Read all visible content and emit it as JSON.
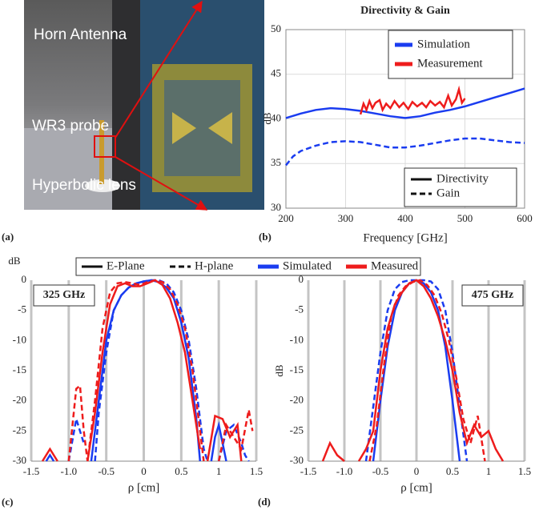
{
  "photo": {
    "labels": [
      "Horn Antenna",
      "WR3 probe",
      "Hyperbolic lens"
    ],
    "panel_label": "(a)"
  },
  "shared_legend": {
    "styles": [
      "E-Plane",
      "H-plane"
    ]
  },
  "chart_data": [
    {
      "type": "line",
      "title": "Directivity & Gain",
      "panel_label": "(b)",
      "x_label": "Frequency [GHz]",
      "y_label": "dB",
      "xlim": [
        200,
        600
      ],
      "xticks": [
        200,
        300,
        400,
        500,
        600
      ],
      "ylim": [
        30,
        50
      ],
      "yticks": [
        30,
        35,
        40,
        45,
        50
      ],
      "grid": true,
      "style_legend": [
        "Directivity",
        "Gain"
      ],
      "series": [
        {
          "name": "Simulation",
          "color": "#1a3cf0",
          "dashed": false,
          "x": [
            200,
            225,
            250,
            275,
            300,
            325,
            350,
            375,
            400,
            425,
            450,
            475,
            500,
            525,
            550,
            575,
            600
          ],
          "values": [
            40.1,
            40.6,
            41.0,
            41.2,
            41.1,
            40.9,
            40.6,
            40.3,
            40.1,
            40.3,
            40.7,
            41.0,
            41.4,
            41.9,
            42.4,
            42.9,
            43.4
          ]
        },
        {
          "name": "Simulation",
          "color": "#1a3cf0",
          "dashed": true,
          "x": [
            200,
            212,
            225,
            250,
            275,
            300,
            325,
            350,
            375,
            400,
            425,
            450,
            475,
            500,
            525,
            550,
            575,
            600
          ],
          "values": [
            34.8,
            35.8,
            36.4,
            37.0,
            37.4,
            37.5,
            37.4,
            37.1,
            36.8,
            36.8,
            37.0,
            37.3,
            37.6,
            37.8,
            37.8,
            37.6,
            37.4,
            37.3
          ]
        },
        {
          "name": "Measurement",
          "color": "#ee1c1c",
          "dashed": false,
          "x": [
            325,
            330,
            335,
            340,
            345,
            350,
            357,
            362,
            368,
            375,
            382,
            390,
            397,
            405,
            412,
            420,
            428,
            435,
            442,
            450,
            458,
            465,
            472,
            478,
            485,
            490,
            495,
            500
          ],
          "values": [
            40.5,
            41.7,
            41.0,
            42.0,
            41.2,
            41.8,
            42.1,
            41.0,
            41.7,
            41.2,
            42.0,
            41.3,
            41.8,
            41.1,
            41.9,
            41.4,
            41.8,
            41.3,
            42.0,
            41.5,
            41.9,
            41.3,
            42.6,
            41.5,
            42.2,
            43.3,
            41.8,
            42.3
          ]
        }
      ]
    },
    {
      "type": "line",
      "panel_label": "(c)",
      "x_label": "ρ  [cm]",
      "y_label": "dB",
      "annotation": "325 GHz",
      "xlim": [
        -1.5,
        1.5
      ],
      "xticks": [
        -1.5,
        {
          "value": -1,
          "label": "-1.0"
        },
        -0.5,
        0,
        0.5,
        1,
        1.5
      ],
      "ylim": [
        -30,
        0
      ],
      "yticks": [
        -30,
        -25,
        -20,
        -15,
        -10,
        -5,
        0
      ],
      "grid": "x",
      "series": [
        {
          "name": "Simulated",
          "color": "#1a3cf0",
          "dashed": false,
          "x": [
            -1.3,
            -1.25,
            -1.2,
            -1.15,
            -0.7,
            -0.6,
            -0.5,
            -0.4,
            -0.3,
            -0.2,
            -0.1,
            0,
            0.1,
            0.2,
            0.3,
            0.4,
            0.5,
            0.6,
            0.7,
            0.75,
            0.8,
            0.9,
            0.95,
            1,
            1.05,
            1.1
          ],
          "values": [
            -30,
            -29,
            -30,
            null,
            -30,
            -20,
            -10,
            -5,
            -2.5,
            -1.2,
            -0.5,
            -0.2,
            0,
            -0.3,
            -1.2,
            -3,
            -7,
            -13,
            -23,
            -30,
            null,
            -30,
            -26,
            -24,
            -27,
            -30
          ]
        },
        {
          "name": "Simulated",
          "color": "#1a3cf0",
          "dashed": true,
          "x": [
            -1,
            -0.9,
            -0.8,
            -0.75,
            -0.65,
            -0.6,
            -0.5,
            -0.4,
            -0.3,
            -0.2,
            -0.1,
            0,
            0.1,
            0.2,
            0.3,
            0.4,
            0.5,
            0.6,
            0.7,
            0.8,
            0.85,
            0.9,
            1,
            1.1,
            1.2,
            1.3,
            1.35,
            1.4
          ],
          "values": [
            -30,
            -23,
            -27,
            null,
            -30,
            -22,
            -12,
            -5,
            -2.5,
            -1.2,
            -0.6,
            -0.2,
            0,
            0,
            -0.5,
            -2,
            -5,
            -10,
            -18,
            -28,
            -30,
            null,
            -30,
            -25,
            -24,
            -27,
            -29,
            -30
          ]
        },
        {
          "name": "Measured",
          "color": "#ee1c1c",
          "dashed": false,
          "x": [
            -1.35,
            -1.25,
            -1.15,
            -1.05,
            -0.75,
            -0.65,
            -0.55,
            -0.45,
            -0.35,
            -0.25,
            -0.15,
            -0.05,
            0.05,
            0.15,
            0.25,
            0.35,
            0.45,
            0.55,
            0.65,
            0.75,
            0.8,
            0.85,
            0.95,
            1.05,
            1.15,
            1.25,
            1.3
          ],
          "values": [
            -30,
            -28,
            -30,
            null,
            -30,
            -22,
            -12,
            -4,
            -1,
            -0.5,
            -1,
            -1,
            -0.5,
            0,
            -0.8,
            -3,
            -7,
            -12,
            -20,
            -28,
            null,
            -30,
            -22.5,
            -23,
            -26,
            -24,
            -30
          ]
        },
        {
          "name": "Measured",
          "color": "#ee1c1c",
          "dashed": true,
          "x": [
            -1,
            -0.9,
            -0.85,
            -0.8,
            -0.75,
            -0.65,
            -0.55,
            -0.45,
            -0.35,
            -0.25,
            -0.15,
            -0.05,
            0.05,
            0.15,
            0.25,
            0.35,
            0.45,
            0.55,
            0.65,
            0.75,
            0.8,
            0.85,
            1,
            1.1,
            1.2,
            1.3,
            1.4,
            1.45
          ],
          "values": [
            -30,
            -18,
            -17.5,
            -25,
            -30,
            -20,
            -8,
            -2,
            -0.5,
            -0.3,
            -0.5,
            -0.8,
            -0.3,
            0,
            -0.3,
            -1.5,
            -4,
            -8,
            -15,
            -25,
            -30,
            null,
            -30,
            -24,
            -26,
            -28,
            -21.5,
            -25
          ]
        }
      ]
    },
    {
      "type": "line",
      "panel_label": "(d)",
      "x_label": "ρ  [cm]",
      "y_label": "dB",
      "annotation": "475 GHz",
      "xlim": [
        -1.5,
        1.5
      ],
      "xticks": [
        -1.5,
        {
          "value": -1,
          "label": "-1.0"
        },
        -0.5,
        0,
        0.5,
        1,
        1.5
      ],
      "ylim": [
        -30,
        0
      ],
      "yticks": [
        -30,
        -25,
        -20,
        -15,
        -10,
        -5,
        0
      ],
      "grid": "x",
      "series": [
        {
          "name": "Simulated",
          "color": "#1a3cf0",
          "dashed": false,
          "x": [
            -0.6,
            -0.5,
            -0.4,
            -0.3,
            -0.2,
            -0.1,
            0,
            0.1,
            0.2,
            0.3,
            0.4,
            0.5,
            0.6
          ],
          "values": [
            -30,
            -20,
            -11,
            -5,
            -2,
            -0.5,
            0,
            -0.5,
            -2,
            -5,
            -11,
            -20,
            -30
          ]
        },
        {
          "name": "Simulated",
          "color": "#1a3cf0",
          "dashed": true,
          "x": [
            -0.7,
            -0.6,
            -0.5,
            -0.4,
            -0.3,
            -0.2,
            -0.1,
            0,
            0.1,
            0.2,
            0.3,
            0.4,
            0.5,
            0.6,
            0.7
          ],
          "values": [
            -30,
            -21,
            -12,
            -5,
            -1.5,
            -0.3,
            0,
            0,
            0,
            -0.2,
            -1.5,
            -5,
            -12,
            -21,
            -30
          ]
        },
        {
          "name": "Measured",
          "color": "#ee1c1c",
          "dashed": false,
          "x": [
            -1.3,
            -1.2,
            -1.1,
            -1,
            -0.9,
            -0.8,
            -0.7,
            -0.6,
            -0.5,
            -0.4,
            -0.3,
            -0.2,
            -0.1,
            0,
            0.1,
            0.2,
            0.3,
            0.4,
            0.5,
            0.6,
            0.7,
            0.8,
            0.9,
            1,
            1.1,
            1.2
          ],
          "values": [
            -30,
            -27,
            -29,
            -30,
            null,
            -30,
            -28,
            -25,
            -15,
            -8,
            -4,
            -2,
            -0.5,
            0,
            -1,
            -3,
            -6,
            -10,
            -15,
            -22,
            -27,
            -24,
            -26,
            -25,
            -28,
            -30
          ]
        },
        {
          "name": "Measured",
          "color": "#ee1c1c",
          "dashed": true,
          "x": [
            -0.65,
            -0.55,
            -0.45,
            -0.35,
            -0.25,
            -0.15,
            -0.05,
            0.05,
            0.15,
            0.25,
            0.35,
            0.45,
            0.55,
            0.65,
            0.75,
            0.85,
            0.95
          ],
          "values": [
            -30,
            -24,
            -14,
            -6,
            -2.5,
            -1,
            -0.3,
            0,
            -0.8,
            -2.5,
            -5.5,
            -10,
            -16,
            -23,
            -27,
            -22.5,
            -30
          ]
        }
      ]
    }
  ]
}
